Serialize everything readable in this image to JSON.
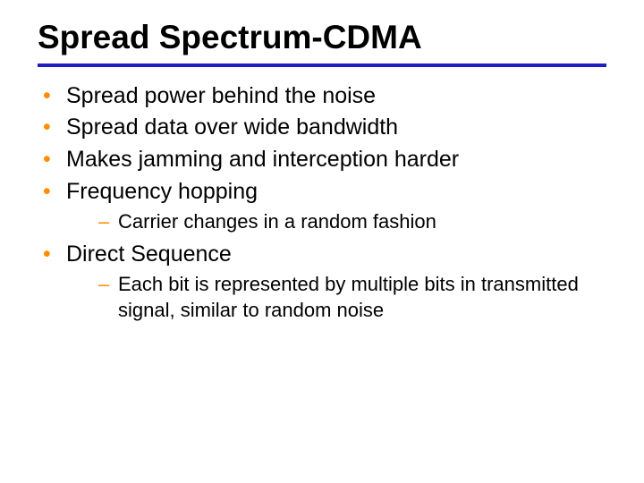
{
  "title": "Spread Spectrum-CDMA",
  "colors": {
    "rule": "#1f1fbf",
    "bullet": "#ff8c00",
    "text": "#000000",
    "background": "#ffffff"
  },
  "typography": {
    "title_font": "Arial",
    "title_weight": 900,
    "title_size_pt": 28,
    "body_font": "Verdana",
    "l1_size_pt": 19,
    "l2_size_pt": 17
  },
  "bullets": [
    {
      "text": "Spread power behind the noise",
      "sub": []
    },
    {
      "text": "Spread data over wide bandwidth",
      "sub": []
    },
    {
      "text": "Makes jamming and interception harder",
      "sub": []
    },
    {
      "text": "Frequency hopping",
      "sub": [
        {
          "text": "Carrier changes in a random fashion"
        }
      ]
    },
    {
      "text": "Direct Sequence",
      "sub": [
        {
          "text": "Each bit is represented by multiple bits in transmitted signal, similar to random noise"
        }
      ]
    }
  ]
}
